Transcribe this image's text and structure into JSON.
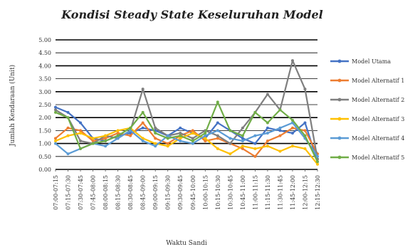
{
  "chart_data": {
    "type": "line",
    "title": "Kondisi Steady State Keseluruhan Model",
    "xlabel": "Waktu Sandi",
    "ylabel": "Jumlah Kendaraan (Unit)",
    "ylim": [
      0,
      5
    ],
    "yticks": [
      "0.00",
      "0.50",
      "1.00",
      "1.50",
      "2.00",
      "2.50",
      "3.00",
      "3.50",
      "4.00",
      "4.50",
      "5.00"
    ],
    "grid": true,
    "legend_position": "right",
    "categories": [
      "07:00-07:15",
      "07:15-07:30",
      "07:30-07:45",
      "07:45-08:00",
      "08:00-08:15",
      "08:15-08:30",
      "08:30-08:45",
      "08:45-09:00",
      "09:00-09:15",
      "09:15-09:30",
      "09:30-09:45",
      "09:45-10:00",
      "10:00-10:15",
      "10:15-10:30",
      "10:30-10:45",
      "10:45-11:00",
      "11:00-11:15",
      "11:15-11:30",
      "11:30-11:45",
      "11:45-12:00",
      "12:00-12:15",
      "12:15-12:30"
    ],
    "series": [
      {
        "name": "Model Utama",
        "color": "#4472C4",
        "values": [
          2.4,
          2.2,
          1.8,
          1.2,
          1.1,
          1.3,
          1.4,
          1.6,
          1.5,
          1.3,
          1.6,
          1.4,
          1.2,
          1.8,
          1.5,
          1.2,
          1.0,
          1.6,
          1.5,
          1.4,
          1.8,
          0.3
        ]
      },
      {
        "name": "Model Alternatif 1",
        "color": "#ED7D31",
        "values": [
          1.2,
          1.6,
          1.5,
          1.1,
          1.2,
          1.4,
          1.3,
          1.8,
          1.2,
          1.0,
          1.3,
          1.5,
          1.1,
          1.2,
          1.0,
          0.8,
          0.5,
          1.1,
          1.3,
          1.6,
          1.5,
          0.6
        ]
      },
      {
        "name": "Model Alternatif 2",
        "color": "#7F7F7F",
        "values": [
          2.3,
          2.0,
          1.1,
          1.0,
          1.3,
          1.2,
          1.5,
          3.1,
          1.6,
          1.3,
          1.4,
          1.2,
          1.5,
          1.3,
          1.0,
          1.6,
          2.2,
          2.9,
          2.3,
          4.2,
          3.1,
          0.4
        ]
      },
      {
        "name": "Model Alternatif 3",
        "color": "#FFC000",
        "values": [
          1.1,
          1.3,
          1.4,
          1.2,
          1.3,
          1.5,
          1.6,
          1.2,
          1.0,
          0.9,
          1.2,
          1.4,
          1.2,
          0.8,
          0.6,
          0.9,
          0.8,
          0.9,
          0.7,
          0.9,
          0.8,
          0.2
        ]
      },
      {
        "name": "Model Alternatif 4",
        "color": "#5B9BD5",
        "values": [
          1.0,
          0.6,
          0.8,
          1.0,
          0.9,
          1.2,
          1.5,
          1.1,
          0.9,
          1.3,
          1.1,
          1.0,
          1.3,
          1.5,
          1.2,
          1.1,
          1.3,
          1.4,
          1.6,
          1.8,
          1.2,
          0.5
        ]
      },
      {
        "name": "Model Alternatif 5",
        "color": "#70AD47",
        "values": [
          2.2,
          2.0,
          0.8,
          1.0,
          1.1,
          1.3,
          1.6,
          2.2,
          1.4,
          1.2,
          1.3,
          1.1,
          1.4,
          2.6,
          1.5,
          1.3,
          2.2,
          1.8,
          2.3,
          1.9,
          1.3,
          0.3
        ]
      }
    ]
  }
}
